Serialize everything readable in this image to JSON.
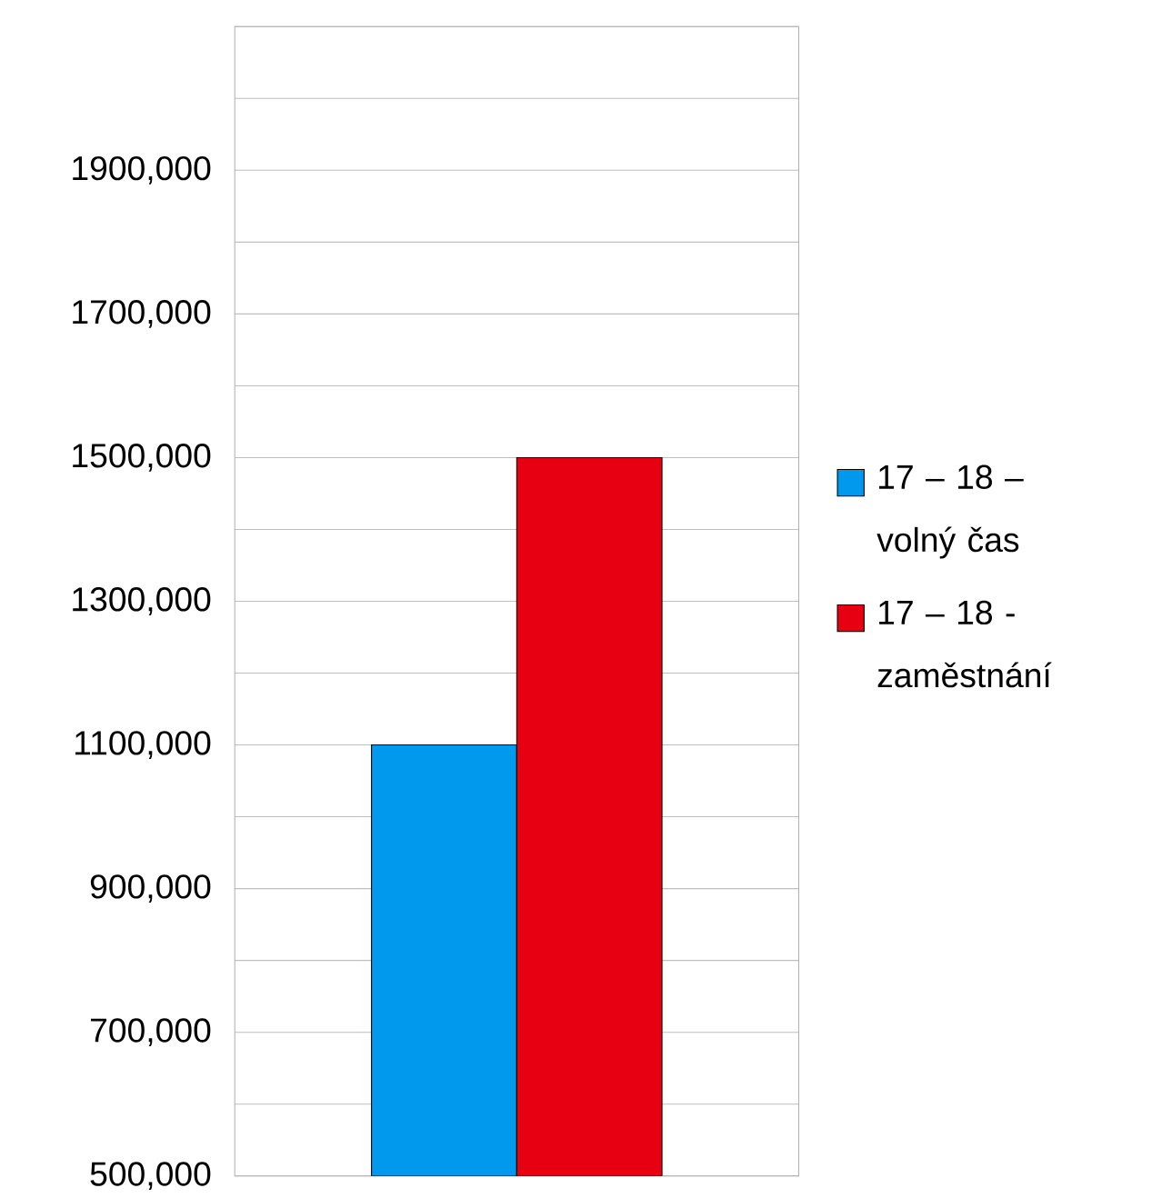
{
  "chart_data": {
    "type": "bar",
    "categories": [
      null
    ],
    "series": [
      {
        "name": "17 – 18 – volný čas",
        "color": "#0099ee",
        "values": [
          1100000
        ]
      },
      {
        "name": "17 – 18 -zaměstnání",
        "color": "#e60012",
        "values": [
          1500000
        ]
      }
    ],
    "ylim": [
      500000,
      2100000
    ],
    "yticks": [
      {
        "value": 500000,
        "label": "500,000"
      },
      {
        "value": 600000,
        "label": null
      },
      {
        "value": 700000,
        "label": "700,000"
      },
      {
        "value": 800000,
        "label": null
      },
      {
        "value": 900000,
        "label": "900,000"
      },
      {
        "value": 1000000,
        "label": null
      },
      {
        "value": 1100000,
        "label": "1100,000"
      },
      {
        "value": 1200000,
        "label": null
      },
      {
        "value": 1300000,
        "label": "1300,000"
      },
      {
        "value": 1400000,
        "label": null
      },
      {
        "value": 1500000,
        "label": "1500,000"
      },
      {
        "value": 1600000,
        "label": null
      },
      {
        "value": 1700000,
        "label": "1700,000"
      },
      {
        "value": 1800000,
        "label": null
      },
      {
        "value": 1900000,
        "label": "1900,000"
      },
      {
        "value": 2000000,
        "label": null
      },
      {
        "value": 2100000,
        "label": null
      }
    ],
    "grid": "y",
    "legend": "right",
    "tick_labels": "y"
  }
}
